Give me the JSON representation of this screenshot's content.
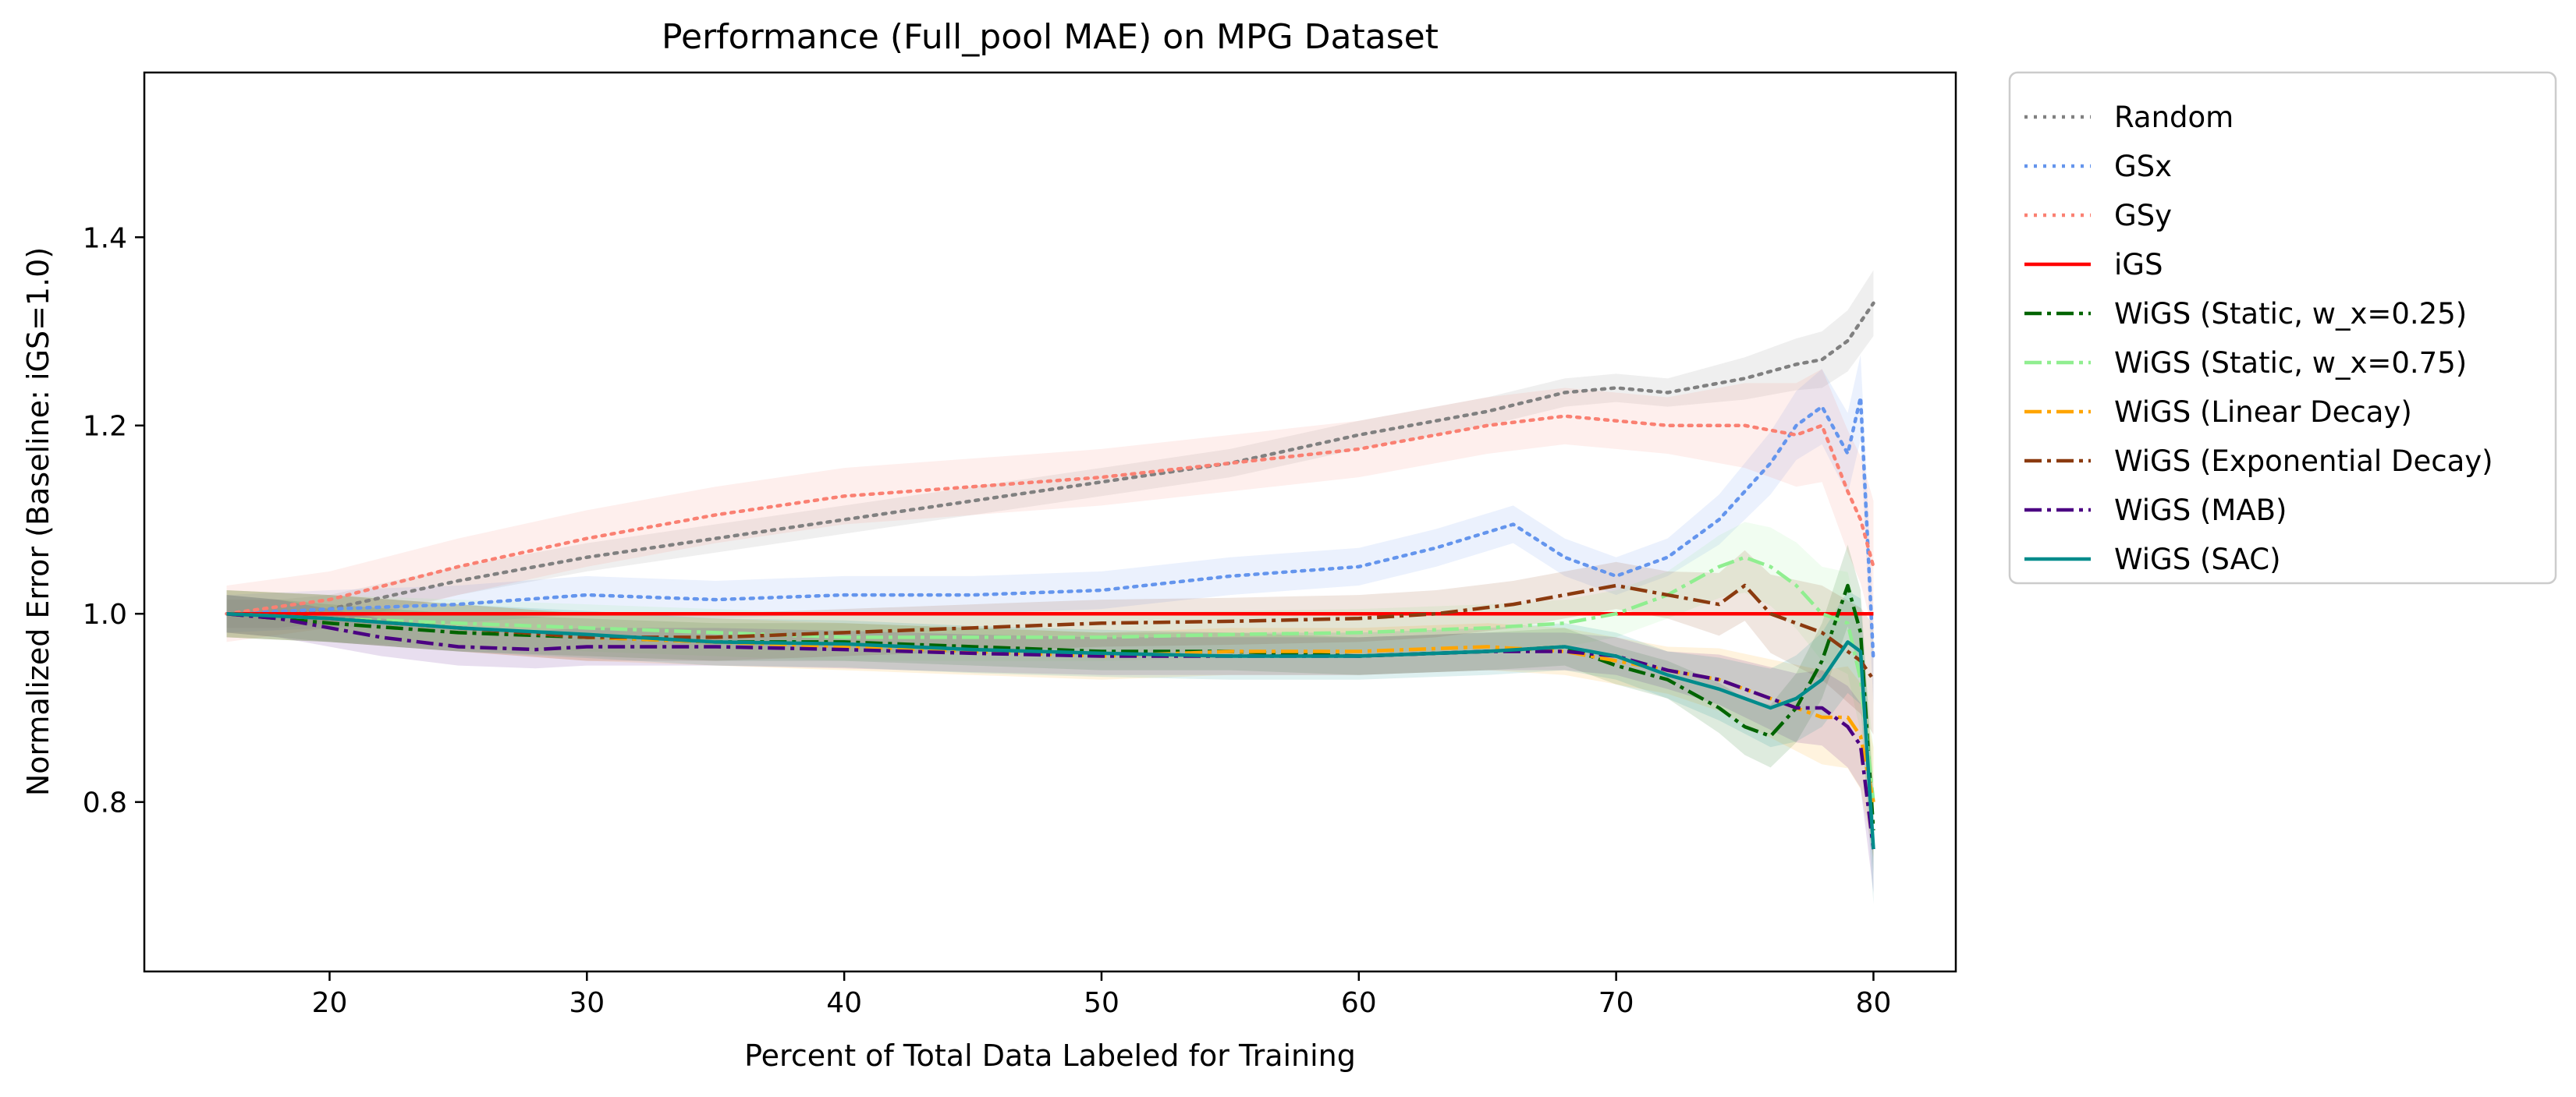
{
  "chart_data": {
    "type": "line",
    "title": "Performance (Full_pool MAE) on MPG Dataset",
    "xlabel": "Percent of Total Data Labeled for Training",
    "ylabel": "Normalized Error (Baseline: iGS=1.0)",
    "xlim": [
      12.8,
      83.2
    ],
    "ylim": [
      0.62,
      1.575
    ],
    "xticks": [
      20,
      30,
      40,
      50,
      60,
      70,
      80
    ],
    "xtick_labels": [
      "20",
      "30",
      "40",
      "50",
      "60",
      "70",
      "80"
    ],
    "yticks": [
      0.8,
      1.0,
      1.2,
      1.4
    ],
    "ytick_labels": [
      "0.8",
      "1.0",
      "1.2",
      "1.4"
    ],
    "grid": false,
    "legend_position": "outside-right",
    "series": [
      {
        "name": "Random",
        "color": "#808080",
        "style": "dotted",
        "x": [
          16,
          18,
          20,
          25,
          30,
          35,
          40,
          45,
          50,
          55,
          60,
          65,
          68,
          70,
          72,
          75,
          77,
          78,
          79,
          79.5,
          80
        ],
        "y": [
          1.0,
          1.0,
          1.005,
          1.035,
          1.06,
          1.08,
          1.1,
          1.12,
          1.14,
          1.16,
          1.19,
          1.215,
          1.235,
          1.24,
          1.235,
          1.25,
          1.265,
          1.27,
          1.29,
          1.31,
          1.33
        ],
        "band": 0.015
      },
      {
        "name": "GSx",
        "color": "#6495ed",
        "style": "dotted",
        "x": [
          16,
          20,
          25,
          30,
          35,
          40,
          45,
          50,
          55,
          60,
          63,
          66,
          68,
          70,
          72,
          74,
          76,
          77,
          78,
          79,
          79.5,
          80
        ],
        "y": [
          1.0,
          1.005,
          1.01,
          1.02,
          1.015,
          1.02,
          1.02,
          1.025,
          1.04,
          1.05,
          1.07,
          1.095,
          1.06,
          1.04,
          1.06,
          1.1,
          1.16,
          1.2,
          1.22,
          1.17,
          1.23,
          0.95
        ],
        "band": 0.02
      },
      {
        "name": "GSy",
        "color": "#fa8072",
        "style": "dotted",
        "x": [
          16,
          20,
          25,
          30,
          35,
          40,
          45,
          50,
          55,
          60,
          65,
          68,
          70,
          72,
          75,
          77,
          78,
          79,
          79.5,
          80
        ],
        "y": [
          1.0,
          1.015,
          1.05,
          1.08,
          1.105,
          1.125,
          1.135,
          1.145,
          1.16,
          1.175,
          1.2,
          1.21,
          1.205,
          1.2,
          1.2,
          1.19,
          1.2,
          1.13,
          1.1,
          1.05
        ],
        "band": 0.03
      },
      {
        "name": "iGS",
        "color": "#ff0000",
        "style": "solid",
        "x": [
          16,
          80
        ],
        "y": [
          1.0,
          1.0
        ],
        "band": 0.0
      },
      {
        "name": "WiGS (Static, w_x=0.25)",
        "color": "#006400",
        "style": "dashdot",
        "x": [
          16,
          20,
          25,
          30,
          35,
          40,
          45,
          50,
          55,
          60,
          65,
          68,
          70,
          72,
          74,
          75,
          76,
          77,
          78,
          79,
          79.5,
          80
        ],
        "y": [
          1.0,
          0.99,
          0.98,
          0.975,
          0.97,
          0.97,
          0.965,
          0.96,
          0.96,
          0.955,
          0.96,
          0.965,
          0.945,
          0.93,
          0.9,
          0.88,
          0.87,
          0.9,
          0.95,
          1.03,
          0.98,
          0.77
        ],
        "band": 0.02
      },
      {
        "name": "WiGS (Static, w_x=0.75)",
        "color": "#90ee90",
        "style": "dashdot",
        "x": [
          16,
          20,
          25,
          30,
          35,
          40,
          45,
          50,
          55,
          60,
          65,
          68,
          70,
          72,
          74,
          75,
          76,
          77,
          78,
          79,
          79.5,
          80
        ],
        "y": [
          1.0,
          0.995,
          0.99,
          0.985,
          0.98,
          0.975,
          0.975,
          0.975,
          0.978,
          0.98,
          0.985,
          0.99,
          1.0,
          1.02,
          1.05,
          1.06,
          1.05,
          1.03,
          1.0,
          0.99,
          0.93,
          0.8
        ],
        "band": 0.025
      },
      {
        "name": "WiGS (Linear Decay)",
        "color": "#ffa500",
        "style": "dashdot",
        "x": [
          16,
          20,
          25,
          30,
          35,
          40,
          45,
          50,
          55,
          60,
          65,
          68,
          70,
          72,
          74,
          76,
          77,
          78,
          79,
          79.5,
          80
        ],
        "y": [
          1.0,
          0.995,
          0.985,
          0.975,
          0.97,
          0.965,
          0.96,
          0.955,
          0.96,
          0.96,
          0.965,
          0.96,
          0.95,
          0.94,
          0.93,
          0.91,
          0.9,
          0.89,
          0.89,
          0.87,
          0.8
        ],
        "band": 0.025
      },
      {
        "name": "WiGS (Exponential Decay)",
        "color": "#8b3a0f",
        "style": "dashdot",
        "x": [
          16,
          20,
          25,
          30,
          35,
          40,
          45,
          50,
          55,
          60,
          63,
          66,
          68,
          70,
          72,
          74,
          75,
          76,
          77,
          78,
          79,
          79.5,
          80
        ],
        "y": [
          1.0,
          0.995,
          0.985,
          0.975,
          0.975,
          0.98,
          0.985,
          0.99,
          0.992,
          0.995,
          1.0,
          1.01,
          1.02,
          1.03,
          1.02,
          1.01,
          1.03,
          1.0,
          0.99,
          0.98,
          0.96,
          0.95,
          0.93
        ],
        "band": 0.025
      },
      {
        "name": "WiGS (MAB)",
        "color": "#4b0082",
        "style": "dashdot",
        "x": [
          16,
          18,
          20,
          22,
          25,
          28,
          30,
          35,
          40,
          45,
          50,
          55,
          60,
          65,
          68,
          70,
          72,
          74,
          76,
          77,
          78,
          79,
          79.5,
          80
        ],
        "y": [
          1.0,
          0.995,
          0.985,
          0.975,
          0.965,
          0.962,
          0.965,
          0.965,
          0.962,
          0.958,
          0.955,
          0.955,
          0.955,
          0.96,
          0.96,
          0.955,
          0.94,
          0.93,
          0.91,
          0.9,
          0.9,
          0.88,
          0.86,
          0.75
        ],
        "band": 0.02
      },
      {
        "name": "WiGS (SAC)",
        "color": "#008b8b",
        "style": "solid",
        "x": [
          16,
          20,
          25,
          30,
          35,
          40,
          45,
          50,
          55,
          60,
          65,
          68,
          70,
          72,
          74,
          75,
          76,
          77,
          78,
          79,
          79.5,
          80
        ],
        "y": [
          1.0,
          0.995,
          0.985,
          0.978,
          0.97,
          0.968,
          0.962,
          0.958,
          0.955,
          0.955,
          0.96,
          0.965,
          0.955,
          0.935,
          0.92,
          0.91,
          0.9,
          0.91,
          0.93,
          0.97,
          0.96,
          0.75
        ],
        "band": 0.025
      }
    ]
  }
}
